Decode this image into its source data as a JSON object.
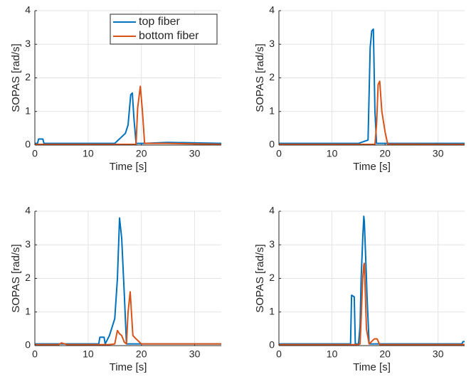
{
  "chart_data": [
    {
      "type": "line",
      "x_label": "Time [s]",
      "y_label": "SOPAS [rad/s]",
      "x": [
        0,
        0.5,
        0.7,
        1.5,
        1.7,
        15,
        16,
        17,
        17.5,
        18,
        18.3,
        18.6,
        19,
        19.3,
        19.8,
        20.2,
        20.6,
        25,
        35
      ],
      "series": [
        {
          "name": "top fiber",
          "color": "#0072BD",
          "values": [
            0.05,
            0.05,
            0.18,
            0.18,
            0.05,
            0.05,
            0.2,
            0.35,
            0.6,
            1.5,
            1.55,
            0.8,
            0.05,
            0.05,
            0.05,
            0.05,
            0.05,
            0.08,
            0.05
          ]
        },
        {
          "name": "bottom fiber",
          "color": "#D95319",
          "values": [
            0.02,
            0.02,
            0.02,
            0.02,
            0.02,
            0.02,
            0.02,
            0.02,
            0.02,
            0.02,
            0.02,
            0.02,
            0.02,
            1.1,
            1.75,
            1.0,
            0.05,
            0.05,
            0.02
          ]
        }
      ],
      "xlim": [
        0,
        35
      ],
      "xticks": [
        0,
        10,
        20,
        30
      ],
      "ylim": [
        0,
        4
      ],
      "yticks": [
        0,
        1,
        2,
        3,
        4
      ],
      "grid": true,
      "legend": "northeast"
    },
    {
      "type": "line",
      "x_label": "Time [s]",
      "y_label": "SOPAS [rad/s]",
      "x": [
        0,
        15,
        16.8,
        17.2,
        17.5,
        17.8,
        18.1,
        18.4,
        18.7,
        19,
        19.4,
        20,
        20.5,
        35
      ],
      "series": [
        {
          "color": "#0072BD",
          "values": [
            0.05,
            0.05,
            0.15,
            2.9,
            3.4,
            3.45,
            1.0,
            0.05,
            0.05,
            0.05,
            0.05,
            0.05,
            0.05,
            0.05
          ]
        },
        {
          "color": "#D95319",
          "values": [
            0.02,
            0.02,
            0.02,
            0.02,
            0.02,
            0.02,
            0.02,
            0.6,
            1.8,
            1.9,
            1.0,
            0.4,
            0.03,
            0.02
          ]
        }
      ],
      "xlim": [
        0,
        35
      ],
      "xticks": [
        0,
        10,
        20,
        30
      ],
      "ylim": [
        0,
        4
      ],
      "yticks": [
        0,
        1,
        2,
        3,
        4
      ],
      "grid": true
    },
    {
      "type": "line",
      "x_label": "Time [s]",
      "y_label": "SOPAS [rad/s]",
      "x": [
        0,
        4.5,
        5,
        6,
        12,
        12.2,
        13,
        13.2,
        14,
        15,
        15.5,
        15.9,
        16.3,
        16.8,
        17.2,
        17.5,
        17.9,
        18.4,
        19,
        20,
        35
      ],
      "series": [
        {
          "color": "#0072BD",
          "values": [
            0.05,
            0.05,
            0.05,
            0.05,
            0.05,
            0.25,
            0.25,
            0.05,
            0.3,
            0.8,
            2.0,
            3.8,
            3.2,
            1.5,
            0.05,
            0.05,
            0.05,
            0.05,
            0.05,
            0.05,
            0.05
          ]
        },
        {
          "color": "#D95319",
          "values": [
            0.03,
            0.03,
            0.08,
            0.03,
            0.03,
            0.03,
            0.03,
            0.03,
            0.03,
            0.05,
            0.45,
            0.35,
            0.3,
            0.1,
            0.05,
            1.0,
            1.6,
            0.3,
            0.2,
            0.05,
            0.05
          ]
        }
      ],
      "xlim": [
        0,
        35
      ],
      "xticks": [
        0,
        10,
        20,
        30
      ],
      "ylim": [
        0,
        4
      ],
      "yticks": [
        0,
        1,
        2,
        3,
        4
      ],
      "grid": true
    },
    {
      "type": "line",
      "x_label": "Time [s]",
      "y_label": "SOPAS [rad/s]",
      "x": [
        0,
        13.5,
        13.7,
        14.2,
        14.4,
        15,
        15.3,
        15.5,
        15.8,
        16,
        16.1,
        16.5,
        16.6,
        17,
        18,
        18.5,
        19,
        34.5,
        34.7,
        35
      ],
      "series": [
        {
          "color": "#0072BD",
          "values": [
            0.05,
            0.05,
            1.5,
            1.45,
            0.05,
            0.05,
            0.6,
            2.0,
            3.2,
            3.85,
            3.7,
            2.0,
            1.5,
            0.05,
            0.05,
            0.05,
            0.05,
            0.05,
            0.12,
            0.12
          ]
        },
        {
          "color": "#D95319",
          "values": [
            0.03,
            0.03,
            0.03,
            0.03,
            0.03,
            0.03,
            0.05,
            0.8,
            2.0,
            2.4,
            2.45,
            0.5,
            0.4,
            0.05,
            0.2,
            0.2,
            0.03,
            0.03,
            0.03,
            0.03
          ]
        }
      ],
      "xlim": [
        0,
        35
      ],
      "xticks": [
        0,
        10,
        20,
        30
      ],
      "ylim": [
        0,
        4
      ],
      "yticks": [
        0,
        1,
        2,
        3,
        4
      ],
      "grid": true
    }
  ]
}
